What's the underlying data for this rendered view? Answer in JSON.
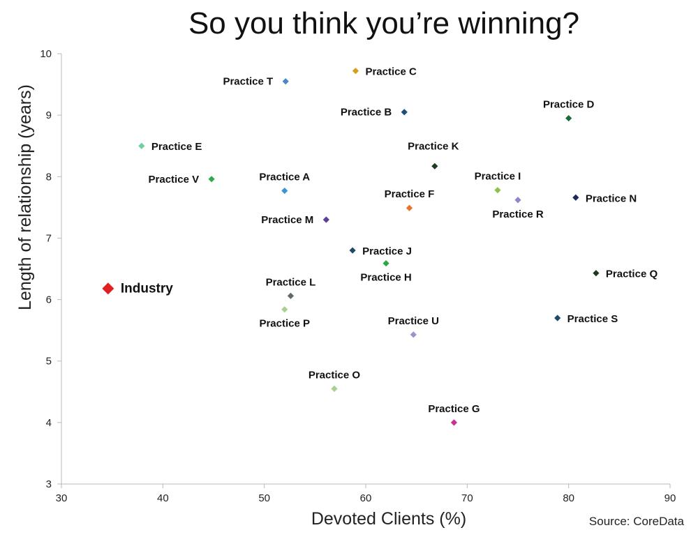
{
  "chart_data": {
    "type": "scatter",
    "title": "So you think you’re winning?",
    "xlabel": "Devoted Clients (%)",
    "ylabel": "Length of relationship (years)",
    "xlim": [
      30,
      90
    ],
    "ylim": [
      3,
      10
    ],
    "xticks": [
      30,
      40,
      50,
      60,
      70,
      80,
      90
    ],
    "yticks": [
      3,
      4,
      5,
      6,
      7,
      8,
      9,
      10
    ],
    "grid": false,
    "source": "Source: CoreData",
    "points": [
      {
        "label": "Practice C",
        "x": 59.0,
        "y": 9.72,
        "color": "#d4a017",
        "label_pos": "right"
      },
      {
        "label": "Practice T",
        "x": 52.1,
        "y": 9.55,
        "color": "#4a86c8",
        "label_pos": "left"
      },
      {
        "label": "Practice B",
        "x": 63.8,
        "y": 9.05,
        "color": "#1e4f7a",
        "label_pos": "left"
      },
      {
        "label": "Practice D",
        "x": 80.0,
        "y": 8.95,
        "color": "#1a6b3a",
        "label_pos": "above"
      },
      {
        "label": "Practice E",
        "x": 37.9,
        "y": 8.5,
        "color": "#6fcf9f",
        "label_pos": "right"
      },
      {
        "label": "Practice K",
        "x": 66.8,
        "y": 8.17,
        "color": "#1f3d1f",
        "label_pos": "above-left"
      },
      {
        "label": "Practice V",
        "x": 44.8,
        "y": 7.96,
        "color": "#2eaa4a",
        "label_pos": "left"
      },
      {
        "label": "Practice A",
        "x": 52.0,
        "y": 7.77,
        "color": "#3c93d6",
        "label_pos": "above"
      },
      {
        "label": "Practice I",
        "x": 73.0,
        "y": 7.78,
        "color": "#8bc34a",
        "label_pos": "above"
      },
      {
        "label": "Practice N",
        "x": 80.7,
        "y": 7.66,
        "color": "#1a2a5e",
        "label_pos": "right"
      },
      {
        "label": "Practice R",
        "x": 75.0,
        "y": 7.62,
        "color": "#8e86c8",
        "label_pos": "below"
      },
      {
        "label": "Practice F",
        "x": 64.3,
        "y": 7.49,
        "color": "#e8732a",
        "label_pos": "above"
      },
      {
        "label": "Practice M",
        "x": 56.1,
        "y": 7.3,
        "color": "#5b3f9a",
        "label_pos": "left"
      },
      {
        "label": "Practice J",
        "x": 58.7,
        "y": 6.8,
        "color": "#1f4a66",
        "label_pos": "right"
      },
      {
        "label": "Practice H",
        "x": 62.0,
        "y": 6.59,
        "color": "#2aa845",
        "label_pos": "below"
      },
      {
        "label": "Practice Q",
        "x": 82.7,
        "y": 6.43,
        "color": "#1e3a1e",
        "label_pos": "right"
      },
      {
        "label": "Industry",
        "x": 34.6,
        "y": 6.18,
        "color": "#e02020",
        "label_pos": "right",
        "emphasis": true
      },
      {
        "label": "Practice L",
        "x": 52.6,
        "y": 6.06,
        "color": "#5f6b6a",
        "label_pos": "above"
      },
      {
        "label": "Practice P",
        "x": 52.0,
        "y": 5.84,
        "color": "#a9d08e",
        "label_pos": "below"
      },
      {
        "label": "Practice S",
        "x": 78.9,
        "y": 5.7,
        "color": "#1e4a66",
        "label_pos": "right"
      },
      {
        "label": "Practice U",
        "x": 64.7,
        "y": 5.43,
        "color": "#9b93d0",
        "label_pos": "above"
      },
      {
        "label": "Practice O",
        "x": 56.9,
        "y": 4.55,
        "color": "#a9d08e",
        "label_pos": "above"
      },
      {
        "label": "Practice G",
        "x": 68.7,
        "y": 4.0,
        "color": "#cc2f8f",
        "label_pos": "above"
      }
    ]
  }
}
